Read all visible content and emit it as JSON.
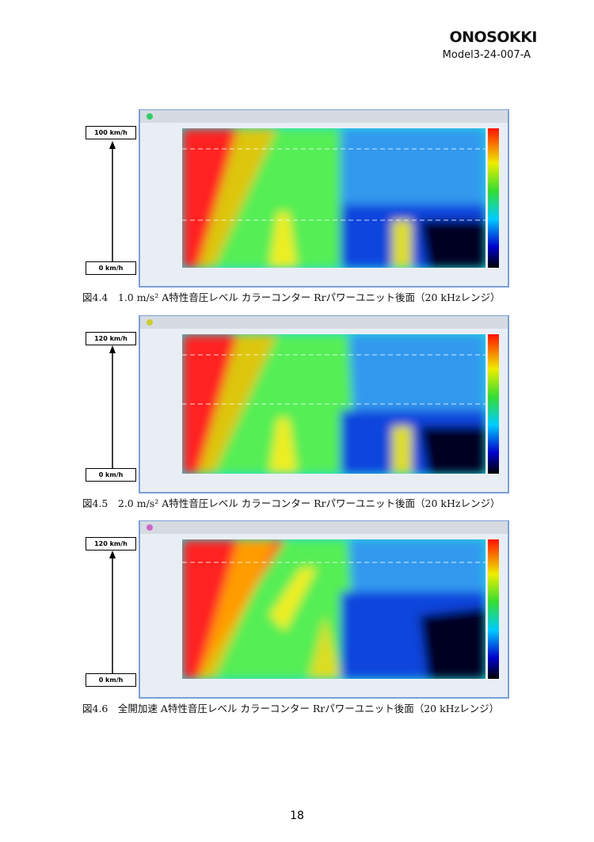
{
  "header": {
    "logo": "ONOSOKKI",
    "model": "Model3-24-007-A"
  },
  "figures": [
    {
      "speed_top": "100 km/h",
      "speed_bottom": "0 km/h",
      "caption": "図4.4　1.0 m/s² A特性音圧レベル カラーコンター Rrパワーユニット後面（20 kHzレンジ）"
    },
    {
      "speed_top": "120 km/h",
      "speed_bottom": "0 km/h",
      "caption": "図4.5　2.0 m/s² A特性音圧レベル カラーコンター Rrパワーユニット後面（20 kHzレンジ）"
    },
    {
      "speed_top": "120 km/h",
      "speed_bottom": "0 km/h",
      "caption": "図4.6　全開加速 A特性音圧レベル カラーコンター Rrパワーユニット後面（20 kHzレンジ）"
    }
  ],
  "page_number": "18"
}
